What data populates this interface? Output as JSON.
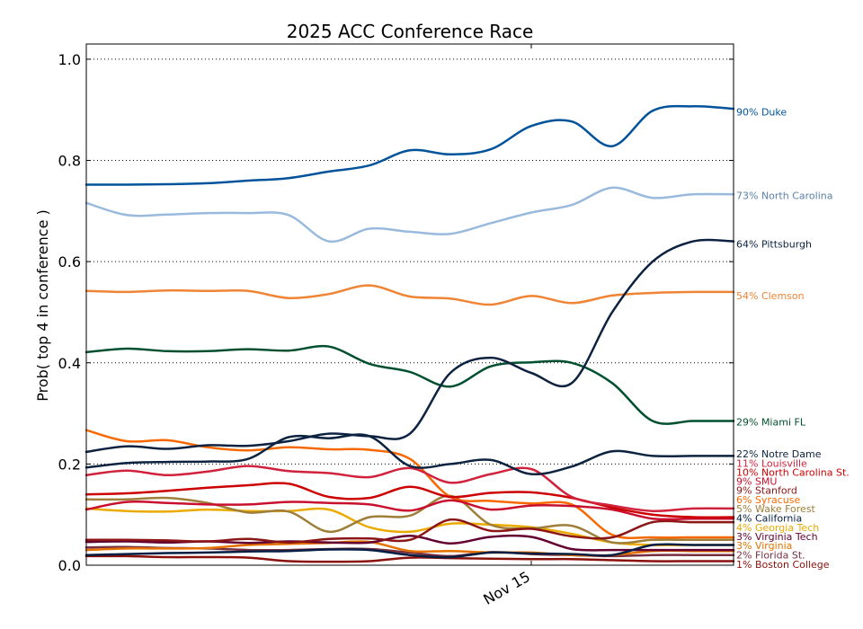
{
  "chart_data": {
    "type": "line",
    "title": "2025 ACC Conference Race",
    "xlabel": "",
    "ylabel": "Prob( top 4 in conference )",
    "ylim": [
      0.0,
      1.03
    ],
    "xlim": [
      0,
      16
    ],
    "grid": "y-dotted",
    "x_ticks": [
      {
        "x": 11,
        "label": "Nov 15"
      }
    ],
    "y_ticks": [
      {
        "y": 0.0,
        "label": "0.0"
      },
      {
        "y": 0.2,
        "label": "0.2"
      },
      {
        "y": 0.4,
        "label": "0.4"
      },
      {
        "y": 0.6,
        "label": "0.6"
      },
      {
        "y": 0.8,
        "label": "0.8"
      },
      {
        "y": 1.0,
        "label": "1.0"
      }
    ],
    "x": [
      0,
      1,
      2,
      3,
      4,
      5,
      6,
      7,
      8,
      9,
      10,
      11,
      12,
      13,
      14,
      15,
      16
    ],
    "series": [
      {
        "name": "Duke",
        "label": "90% Duke",
        "label_y": 0.896,
        "color": "#00539b",
        "values": [
          0.752,
          0.752,
          0.753,
          0.755,
          0.76,
          0.765,
          0.778,
          0.79,
          0.82,
          0.812,
          0.822,
          0.868,
          0.877,
          0.828,
          0.898,
          0.907,
          0.902
        ]
      },
      {
        "name": "North Carolina",
        "label": "73% North Carolina",
        "label_y": 0.731,
        "color": "#99badd",
        "label_color": "#5b7fa6",
        "values": [
          0.716,
          0.692,
          0.693,
          0.696,
          0.696,
          0.692,
          0.64,
          0.665,
          0.659,
          0.655,
          0.676,
          0.697,
          0.712,
          0.746,
          0.726,
          0.733,
          0.733
        ]
      },
      {
        "name": "Pittsburgh",
        "label": "64% Pittsburgh",
        "label_y": 0.635,
        "color": "#0d2240",
        "values": [
          0.224,
          0.235,
          0.23,
          0.237,
          0.236,
          0.245,
          0.26,
          0.255,
          0.26,
          0.38,
          0.41,
          0.38,
          0.36,
          0.5,
          0.6,
          0.64,
          0.64
        ]
      },
      {
        "name": "Clemson",
        "label": "54% Clemson",
        "label_y": 0.533,
        "color": "#f08435",
        "values": [
          0.542,
          0.54,
          0.543,
          0.542,
          0.542,
          0.528,
          0.536,
          0.553,
          0.531,
          0.527,
          0.515,
          0.532,
          0.518,
          0.533,
          0.538,
          0.54,
          0.54
        ]
      },
      {
        "name": "Miami FL",
        "label": "29% Miami FL",
        "label_y": 0.283,
        "color": "#005030",
        "values": [
          0.421,
          0.428,
          0.423,
          0.423,
          0.427,
          0.424,
          0.432,
          0.398,
          0.382,
          0.353,
          0.393,
          0.401,
          0.4,
          0.36,
          0.285,
          0.285,
          0.285
        ]
      },
      {
        "name": "Notre Dame",
        "label": "22% Notre Dame",
        "label_y": 0.22,
        "color": "#0c2340",
        "values": [
          0.193,
          0.202,
          0.204,
          0.205,
          0.21,
          0.253,
          0.251,
          0.255,
          0.196,
          0.2,
          0.208,
          0.18,
          0.195,
          0.225,
          0.216,
          0.216,
          0.216
        ]
      },
      {
        "name": "Louisville",
        "label": "11% Louisville",
        "label_y": 0.202,
        "color": "#d0213d",
        "values": [
          0.178,
          0.187,
          0.178,
          0.185,
          0.196,
          0.186,
          0.182,
          0.174,
          0.192,
          0.163,
          0.18,
          0.19,
          0.135,
          0.118,
          0.107,
          0.112,
          0.112
        ]
      },
      {
        "name": "North Carolina St.",
        "label": "10% North Carolina St.",
        "label_y": 0.184,
        "color": "#cc0000",
        "values": [
          0.14,
          0.142,
          0.147,
          0.153,
          0.158,
          0.161,
          0.135,
          0.133,
          0.155,
          0.135,
          0.143,
          0.144,
          0.133,
          0.114,
          0.1,
          0.095,
          0.095
        ]
      },
      {
        "name": "SMU",
        "label": "9% SMU",
        "label_y": 0.166,
        "color": "#c8102e",
        "values": [
          0.11,
          0.125,
          0.123,
          0.12,
          0.12,
          0.125,
          0.123,
          0.12,
          0.108,
          0.128,
          0.11,
          0.118,
          0.117,
          0.11,
          0.092,
          0.092,
          0.092
        ]
      },
      {
        "name": "Stanford",
        "label": "9% Stanford",
        "label_y": 0.148,
        "color": "#8c1515",
        "values": [
          0.05,
          0.05,
          0.049,
          0.047,
          0.052,
          0.045,
          0.052,
          0.053,
          0.05,
          0.09,
          0.068,
          0.072,
          0.057,
          0.055,
          0.085,
          0.085,
          0.085
        ]
      },
      {
        "name": "Syracuse",
        "label": "6% Syracuse",
        "label_y": 0.13,
        "color": "#f76900",
        "values": [
          0.267,
          0.245,
          0.247,
          0.233,
          0.227,
          0.233,
          0.229,
          0.228,
          0.21,
          0.135,
          0.127,
          0.122,
          0.12,
          0.06,
          0.055,
          0.055,
          0.055
        ]
      },
      {
        "name": "Wake Forest",
        "label": "5% Wake Forest",
        "label_y": 0.112,
        "color": "#9e7e38",
        "values": [
          0.13,
          0.13,
          0.133,
          0.123,
          0.104,
          0.106,
          0.066,
          0.095,
          0.098,
          0.137,
          0.08,
          0.073,
          0.078,
          0.045,
          0.05,
          0.05,
          0.05
        ]
      },
      {
        "name": "California",
        "label": "4% California",
        "label_y": 0.093,
        "color": "#041e42",
        "values": [
          0.02,
          0.022,
          0.024,
          0.025,
          0.027,
          0.028,
          0.031,
          0.03,
          0.02,
          0.016,
          0.025,
          0.023,
          0.022,
          0.02,
          0.04,
          0.04,
          0.04
        ]
      },
      {
        "name": "Georgia Tech",
        "label": "4% Georgia Tech",
        "label_y": 0.075,
        "color": "#eaaa00",
        "values": [
          0.112,
          0.107,
          0.106,
          0.11,
          0.107,
          0.107,
          0.11,
          0.075,
          0.066,
          0.082,
          0.08,
          0.075,
          0.062,
          0.045,
          0.04,
          0.04,
          0.04
        ]
      },
      {
        "name": "Virginia Tech",
        "label": "3% Virginia Tech",
        "label_y": 0.057,
        "color": "#630031",
        "values": [
          0.046,
          0.047,
          0.045,
          0.047,
          0.044,
          0.047,
          0.045,
          0.045,
          0.058,
          0.043,
          0.056,
          0.056,
          0.032,
          0.03,
          0.03,
          0.03,
          0.03
        ]
      },
      {
        "name": "Virginia",
        "label": "3% Virginia",
        "label_y": 0.039,
        "color": "#e57200",
        "values": [
          0.03,
          0.033,
          0.033,
          0.034,
          0.04,
          0.042,
          0.044,
          0.046,
          0.028,
          0.028,
          0.025,
          0.025,
          0.02,
          0.02,
          0.028,
          0.028,
          0.028
        ]
      },
      {
        "name": "Florida St.",
        "label": "2% Florida St.",
        "label_y": 0.02,
        "color": "#782f40",
        "values": [
          0.035,
          0.036,
          0.034,
          0.033,
          0.03,
          0.03,
          0.032,
          0.032,
          0.025,
          0.018,
          0.026,
          0.022,
          0.02,
          0.018,
          0.02,
          0.02,
          0.02
        ]
      },
      {
        "name": "Boston College",
        "label": "1% Boston College",
        "label_y": 0.002,
        "color": "#8a100b",
        "values": [
          0.018,
          0.018,
          0.016,
          0.016,
          0.015,
          0.008,
          0.007,
          0.008,
          0.015,
          0.014,
          0.013,
          0.012,
          0.012,
          0.01,
          0.008,
          0.008,
          0.008
        ]
      }
    ]
  }
}
